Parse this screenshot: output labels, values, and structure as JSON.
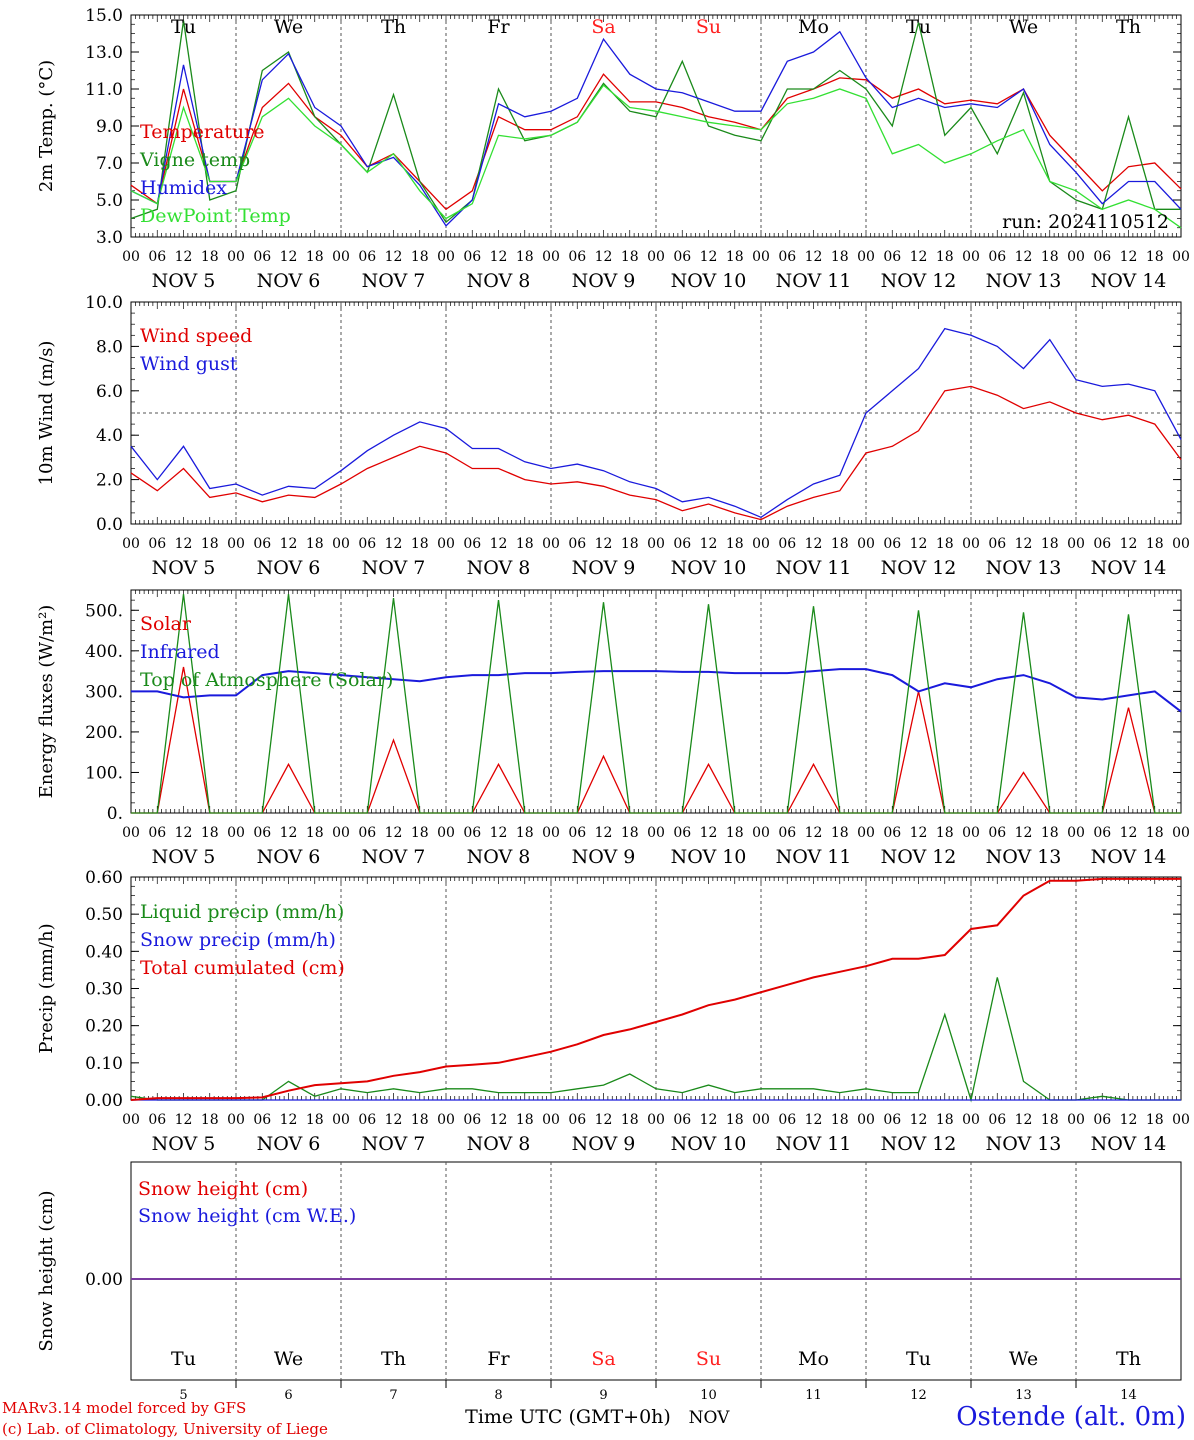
{
  "credits": {
    "line1": "MARv3.14 model forced by GFS",
    "line2": "(c) Lab. of Climatology, University of Liege"
  },
  "station": "Ostende (alt. 0m)",
  "run_label": "run: 2024110512",
  "time_axis": {
    "hour_labels": [
      "00",
      "06",
      "12",
      "18"
    ],
    "date_labels": [
      "NOV  5",
      "NOV  6",
      "NOV  7",
      "NOV  8",
      "NOV  9",
      "NOV 10",
      "NOV 11",
      "NOV 12",
      "NOV 13",
      "NOV 14"
    ],
    "weekdays": [
      "Tu",
      "We",
      "Th",
      "Fr",
      "Sa",
      "Su",
      "Mo",
      "Tu",
      "We",
      "Th"
    ],
    "weekend_days": [
      4,
      5
    ],
    "day_numbers": [
      "5",
      "6",
      "7",
      "8",
      "9",
      "10",
      "11",
      "12",
      "13",
      "14"
    ],
    "xlabel": "Time UTC (GMT+0h)",
    "month": "NOV",
    "start": "2024-11-05 00:00",
    "end": "2024-11-15 00:00"
  },
  "colors": {
    "red": "#e00000",
    "green": "#1a8a1a",
    "blue": "#1a1adc",
    "lightgreen": "#33e033",
    "purple": "#7a3aa0",
    "axis": "#000000",
    "weekend": "#ff2020"
  },
  "chart_data": [
    {
      "type": "line",
      "ylabel": "2m Temp. (°C)",
      "ylim": [
        3.0,
        15.0
      ],
      "ytick_labels": [
        "3.0",
        "5.0",
        "7.0",
        "9.0",
        "11.0",
        "13.0",
        "15.0"
      ],
      "x": [
        "2024-11-05 00:00",
        "2024-11-05 06:00",
        "2024-11-05 12:00",
        "2024-11-05 18:00",
        "2024-11-06 00:00",
        "2024-11-06 06:00",
        "2024-11-06 12:00",
        "2024-11-06 18:00",
        "2024-11-07 00:00",
        "2024-11-07 06:00",
        "2024-11-07 12:00",
        "2024-11-07 18:00",
        "2024-11-08 00:00",
        "2024-11-08 06:00",
        "2024-11-08 12:00",
        "2024-11-08 18:00",
        "2024-11-09 00:00",
        "2024-11-09 06:00",
        "2024-11-09 12:00",
        "2024-11-09 18:00",
        "2024-11-10 00:00",
        "2024-11-10 06:00",
        "2024-11-10 12:00",
        "2024-11-10 18:00",
        "2024-11-11 00:00",
        "2024-11-11 06:00",
        "2024-11-11 12:00",
        "2024-11-11 18:00",
        "2024-11-12 00:00",
        "2024-11-12 06:00",
        "2024-11-12 12:00",
        "2024-11-12 18:00",
        "2024-11-13 00:00",
        "2024-11-13 06:00",
        "2024-11-13 12:00",
        "2024-11-13 18:00",
        "2024-11-14 00:00",
        "2024-11-14 06:00",
        "2024-11-14 12:00",
        "2024-11-14 18:00",
        "2024-11-15 00:00"
      ],
      "series": [
        {
          "name": "Temperature",
          "color": "red",
          "values": [
            5.8,
            4.8,
            11.0,
            6.0,
            6.0,
            10.0,
            11.3,
            9.5,
            8.5,
            6.8,
            7.5,
            6.0,
            4.5,
            5.5,
            9.5,
            8.8,
            8.8,
            9.5,
            11.8,
            10.3,
            10.3,
            10.0,
            9.5,
            9.2,
            8.8,
            10.5,
            11.0,
            11.6,
            11.5,
            10.5,
            11.0,
            10.2,
            10.4,
            10.2,
            11.0,
            8.5,
            7.0,
            5.5,
            6.8,
            7.0,
            5.6
          ]
        },
        {
          "name": "Vigne temp",
          "color": "green",
          "values": [
            4.0,
            4.5,
            14.7,
            5.0,
            5.5,
            12.0,
            13.0,
            9.5,
            8.0,
            6.5,
            10.7,
            6.0,
            3.8,
            5.0,
            11.0,
            8.2,
            8.5,
            9.2,
            11.3,
            9.8,
            9.5,
            12.5,
            9.0,
            8.5,
            8.2,
            11.0,
            11.0,
            12.0,
            11.0,
            9.0,
            14.6,
            8.5,
            10.0,
            7.5,
            10.8,
            6.0,
            5.0,
            4.5,
            9.5,
            4.5,
            4.5
          ]
        },
        {
          "name": "Humidex",
          "color": "blue",
          "values": [
            5.5,
            4.8,
            12.3,
            6.0,
            6.0,
            11.5,
            12.9,
            10.0,
            9.0,
            6.8,
            7.3,
            5.8,
            3.6,
            5.0,
            10.2,
            9.5,
            9.8,
            10.5,
            13.7,
            11.8,
            11.0,
            10.8,
            10.3,
            9.8,
            9.8,
            12.5,
            13.0,
            14.1,
            11.6,
            10.0,
            10.5,
            10.0,
            10.2,
            10.0,
            11.0,
            8.0,
            6.5,
            4.8,
            6.0,
            6.0,
            4.5
          ]
        },
        {
          "name": "DewPoint Temp",
          "color": "lightgreen",
          "values": [
            5.5,
            4.8,
            10.0,
            6.0,
            6.0,
            9.5,
            10.5,
            9.0,
            8.0,
            6.5,
            7.5,
            5.5,
            4.0,
            4.8,
            8.5,
            8.3,
            8.5,
            9.2,
            11.2,
            10.0,
            9.8,
            9.5,
            9.2,
            9.0,
            8.8,
            10.2,
            10.5,
            11.0,
            10.5,
            7.5,
            8.0,
            7.0,
            7.5,
            8.2,
            8.8,
            6.0,
            5.5,
            4.5,
            5.0,
            4.5,
            3.5
          ]
        }
      ]
    },
    {
      "type": "line",
      "ylabel": "10m Wind (m/s)",
      "ylim": [
        0.0,
        10.0
      ],
      "ytick_labels": [
        "0.0",
        "2.0",
        "4.0",
        "6.0",
        "8.0",
        "10.0"
      ],
      "reference_line": 5.0,
      "x": [
        "2024-11-05 00:00",
        "2024-11-05 06:00",
        "2024-11-05 12:00",
        "2024-11-05 18:00",
        "2024-11-06 00:00",
        "2024-11-06 06:00",
        "2024-11-06 12:00",
        "2024-11-06 18:00",
        "2024-11-07 00:00",
        "2024-11-07 06:00",
        "2024-11-07 12:00",
        "2024-11-07 18:00",
        "2024-11-08 00:00",
        "2024-11-08 06:00",
        "2024-11-08 12:00",
        "2024-11-08 18:00",
        "2024-11-09 00:00",
        "2024-11-09 06:00",
        "2024-11-09 12:00",
        "2024-11-09 18:00",
        "2024-11-10 00:00",
        "2024-11-10 06:00",
        "2024-11-10 12:00",
        "2024-11-10 18:00",
        "2024-11-11 00:00",
        "2024-11-11 06:00",
        "2024-11-11 12:00",
        "2024-11-11 18:00",
        "2024-11-12 00:00",
        "2024-11-12 06:00",
        "2024-11-12 12:00",
        "2024-11-12 18:00",
        "2024-11-13 00:00",
        "2024-11-13 06:00",
        "2024-11-13 12:00",
        "2024-11-13 18:00",
        "2024-11-14 00:00",
        "2024-11-14 06:00",
        "2024-11-14 12:00",
        "2024-11-14 18:00",
        "2024-11-15 00:00"
      ],
      "series": [
        {
          "name": "Wind speed",
          "color": "red",
          "values": [
            2.3,
            1.5,
            2.5,
            1.2,
            1.4,
            1.0,
            1.3,
            1.2,
            1.8,
            2.5,
            3.0,
            3.5,
            3.2,
            2.5,
            2.5,
            2.0,
            1.8,
            1.9,
            1.7,
            1.3,
            1.1,
            0.6,
            0.9,
            0.5,
            0.2,
            0.8,
            1.2,
            1.5,
            3.2,
            3.5,
            4.2,
            6.0,
            6.2,
            5.8,
            5.2,
            5.5,
            5.0,
            4.7,
            4.9,
            4.5,
            2.9
          ]
        },
        {
          "name": "Wind gust",
          "color": "blue",
          "values": [
            3.5,
            2.0,
            3.5,
            1.6,
            1.8,
            1.3,
            1.7,
            1.6,
            2.4,
            3.3,
            4.0,
            4.6,
            4.3,
            3.4,
            3.4,
            2.8,
            2.5,
            2.7,
            2.4,
            1.9,
            1.6,
            1.0,
            1.2,
            0.8,
            0.3,
            1.1,
            1.8,
            2.2,
            5.0,
            6.0,
            7.0,
            8.8,
            8.5,
            8.0,
            7.0,
            8.3,
            6.5,
            6.2,
            6.3,
            6.0,
            3.8
          ]
        }
      ]
    },
    {
      "type": "line",
      "ylabel": "Energy fluxes (W/m²)",
      "ylim": [
        0,
        550
      ],
      "ytick_labels": [
        "0.",
        "100.",
        "200.",
        "300.",
        "400.",
        "500."
      ],
      "x": [
        "2024-11-05 00:00",
        "2024-11-05 06:00",
        "2024-11-05 12:00",
        "2024-11-05 18:00",
        "2024-11-06 00:00",
        "2024-11-06 06:00",
        "2024-11-06 12:00",
        "2024-11-06 18:00",
        "2024-11-07 00:00",
        "2024-11-07 06:00",
        "2024-11-07 12:00",
        "2024-11-07 18:00",
        "2024-11-08 00:00",
        "2024-11-08 06:00",
        "2024-11-08 12:00",
        "2024-11-08 18:00",
        "2024-11-09 00:00",
        "2024-11-09 06:00",
        "2024-11-09 12:00",
        "2024-11-09 18:00",
        "2024-11-10 00:00",
        "2024-11-10 06:00",
        "2024-11-10 12:00",
        "2024-11-10 18:00",
        "2024-11-11 00:00",
        "2024-11-11 06:00",
        "2024-11-11 12:00",
        "2024-11-11 18:00",
        "2024-11-12 00:00",
        "2024-11-12 06:00",
        "2024-11-12 12:00",
        "2024-11-12 18:00",
        "2024-11-13 00:00",
        "2024-11-13 06:00",
        "2024-11-13 12:00",
        "2024-11-13 18:00",
        "2024-11-14 00:00",
        "2024-11-14 06:00",
        "2024-11-14 12:00",
        "2024-11-14 18:00",
        "2024-11-15 00:00"
      ],
      "series": [
        {
          "name": "Solar",
          "color": "red",
          "values": [
            0,
            0,
            360,
            0,
            0,
            0,
            120,
            0,
            0,
            0,
            180,
            0,
            0,
            0,
            120,
            0,
            0,
            0,
            140,
            0,
            0,
            0,
            120,
            0,
            0,
            0,
            120,
            0,
            0,
            0,
            300,
            0,
            0,
            0,
            100,
            0,
            0,
            0,
            260,
            0,
            0
          ]
        },
        {
          "name": "Infrared",
          "color": "blue",
          "values": [
            300,
            300,
            285,
            290,
            290,
            340,
            350,
            345,
            340,
            335,
            330,
            325,
            335,
            340,
            340,
            345,
            345,
            348,
            350,
            350,
            350,
            348,
            348,
            345,
            345,
            345,
            350,
            355,
            355,
            340,
            300,
            320,
            310,
            330,
            340,
            320,
            285,
            280,
            290,
            300,
            250
          ]
        },
        {
          "name": "Top of Atmosphere (Solar)",
          "color": "green",
          "values": [
            0,
            0,
            540,
            0,
            0,
            0,
            540,
            0,
            0,
            0,
            530,
            0,
            0,
            0,
            525,
            0,
            0,
            0,
            520,
            0,
            0,
            0,
            515,
            0,
            0,
            0,
            510,
            0,
            0,
            0,
            500,
            0,
            0,
            0,
            495,
            0,
            0,
            0,
            490,
            0,
            0
          ]
        }
      ]
    },
    {
      "type": "line",
      "ylabel": "Precip (mm/h)",
      "ylim": [
        0.0,
        0.6
      ],
      "ytick_labels": [
        "0.00",
        "0.10",
        "0.20",
        "0.30",
        "0.40",
        "0.50",
        "0.60"
      ],
      "x": [
        "2024-11-05 00:00",
        "2024-11-05 06:00",
        "2024-11-05 12:00",
        "2024-11-05 18:00",
        "2024-11-06 00:00",
        "2024-11-06 06:00",
        "2024-11-06 12:00",
        "2024-11-06 18:00",
        "2024-11-07 00:00",
        "2024-11-07 06:00",
        "2024-11-07 12:00",
        "2024-11-07 18:00",
        "2024-11-08 00:00",
        "2024-11-08 06:00",
        "2024-11-08 12:00",
        "2024-11-08 18:00",
        "2024-11-09 00:00",
        "2024-11-09 06:00",
        "2024-11-09 12:00",
        "2024-11-09 18:00",
        "2024-11-10 00:00",
        "2024-11-10 06:00",
        "2024-11-10 12:00",
        "2024-11-10 18:00",
        "2024-11-11 00:00",
        "2024-11-11 06:00",
        "2024-11-11 12:00",
        "2024-11-11 18:00",
        "2024-11-12 00:00",
        "2024-11-12 06:00",
        "2024-11-12 12:00",
        "2024-11-12 18:00",
        "2024-11-13 00:00",
        "2024-11-13 06:00",
        "2024-11-13 12:00",
        "2024-11-13 18:00",
        "2024-11-14 00:00",
        "2024-11-14 06:00",
        "2024-11-14 12:00",
        "2024-11-14 18:00",
        "2024-11-15 00:00"
      ],
      "series": [
        {
          "name": "Liquid precip (mm/h)",
          "color": "green",
          "values": [
            0.01,
            0.0,
            0.0,
            0.0,
            0.0,
            0.0,
            0.05,
            0.01,
            0.03,
            0.02,
            0.03,
            0.02,
            0.03,
            0.03,
            0.02,
            0.02,
            0.02,
            0.03,
            0.04,
            0.07,
            0.03,
            0.02,
            0.04,
            0.02,
            0.03,
            0.03,
            0.03,
            0.02,
            0.03,
            0.02,
            0.02,
            0.23,
            0.0,
            0.33,
            0.05,
            0.0,
            0.0,
            0.01,
            0.0,
            0.0,
            0.0
          ]
        },
        {
          "name": "Snow precip (mm/h)",
          "color": "blue",
          "values": [
            0,
            0,
            0,
            0,
            0,
            0,
            0,
            0,
            0,
            0,
            0,
            0,
            0,
            0,
            0,
            0,
            0,
            0,
            0,
            0,
            0,
            0,
            0,
            0,
            0,
            0,
            0,
            0,
            0,
            0,
            0,
            0,
            0,
            0,
            0,
            0,
            0,
            0,
            0,
            0,
            0
          ]
        },
        {
          "name": "Total cumulated (cm)",
          "color": "red",
          "values": [
            0.0,
            0.005,
            0.005,
            0.005,
            0.005,
            0.007,
            0.025,
            0.04,
            0.045,
            0.05,
            0.065,
            0.075,
            0.09,
            0.095,
            0.1,
            0.115,
            0.13,
            0.15,
            0.175,
            0.19,
            0.21,
            0.23,
            0.255,
            0.27,
            0.29,
            0.31,
            0.33,
            0.345,
            0.36,
            0.38,
            0.38,
            0.39,
            0.46,
            0.47,
            0.55,
            0.59,
            0.59,
            0.595,
            0.595,
            0.595,
            0.595
          ]
        }
      ]
    },
    {
      "type": "line",
      "ylabel": "Snow height (cm)",
      "ytick_labels": [
        "0.00"
      ],
      "series": [
        {
          "name": "Snow height (cm)",
          "color": "red",
          "values": [
            0,
            0
          ]
        },
        {
          "name": "Snow height (cm W.E.)",
          "color": "blue",
          "values": [
            0,
            0
          ]
        }
      ]
    }
  ]
}
